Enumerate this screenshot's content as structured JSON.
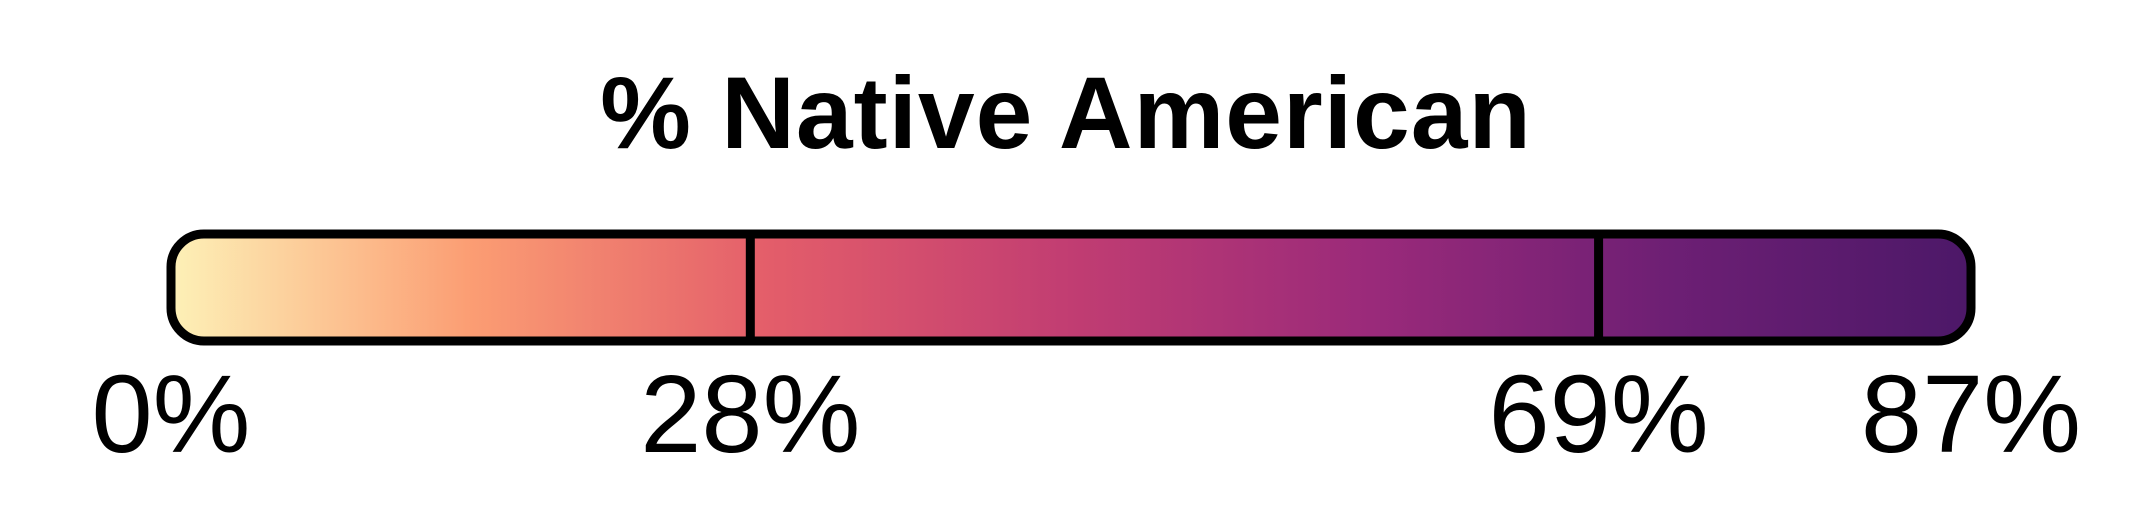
{
  "title": "% Native American",
  "scale": {
    "min": 0,
    "max": 87,
    "breaks": [
      {
        "value": 0,
        "label": "0%"
      },
      {
        "value": 28,
        "label": "28%"
      },
      {
        "value": 69,
        "label": "69%"
      },
      {
        "value": 87,
        "label": "87%"
      }
    ],
    "colors": [
      "#fdf1b7",
      "#fb9d73",
      "#e35d6a",
      "#c13d72",
      "#9a2a7a",
      "#6d1f74",
      "#4c1868"
    ]
  }
}
